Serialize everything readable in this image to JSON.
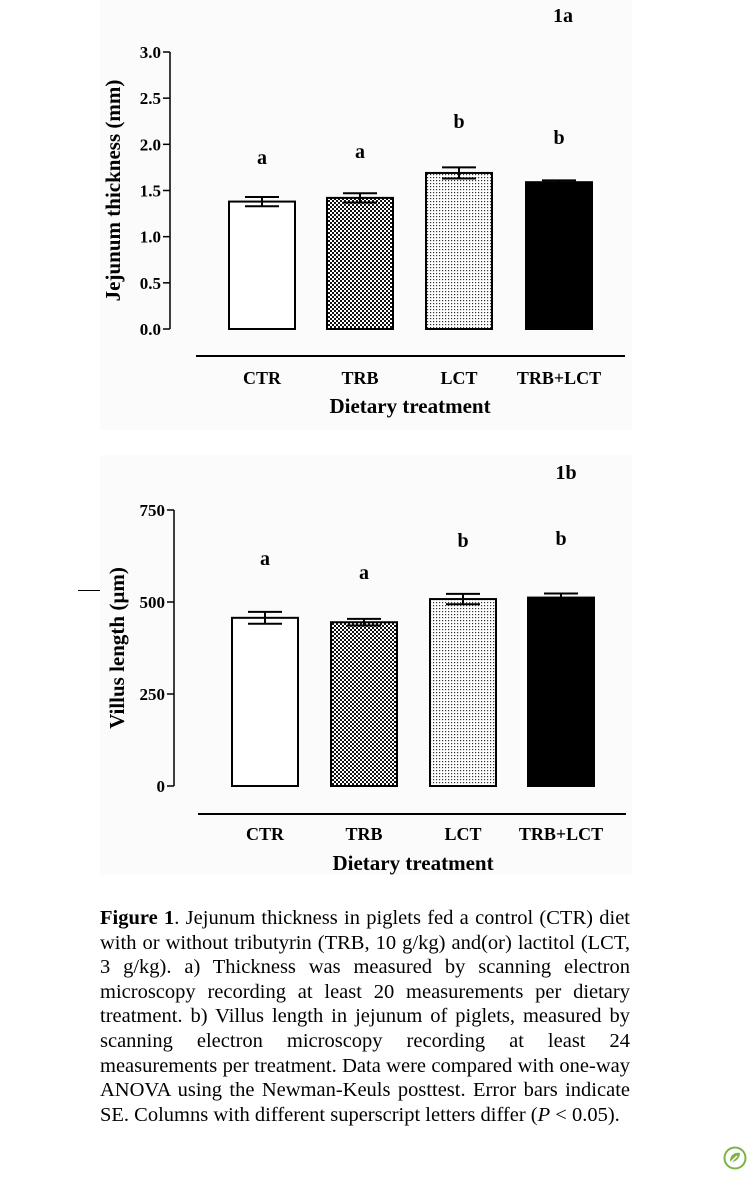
{
  "chart_data": [
    {
      "type": "bar",
      "panel_label": "1a",
      "categories": [
        "CTR",
        "TRB",
        "LCT",
        "TRB+LCT"
      ],
      "values": [
        1.38,
        1.42,
        1.69,
        1.59
      ],
      "errors": [
        0.05,
        0.05,
        0.06,
        0.02
      ],
      "significance": [
        "a",
        "a",
        "b",
        "b"
      ],
      "bar_fills": [
        "open",
        "checkered",
        "dotted",
        "solid"
      ],
      "ylabel": "Jejunum thickness (mm)",
      "xlabel": "Dietary treatment",
      "ylim": [
        0,
        3.0
      ],
      "yticks": [
        0.0,
        0.5,
        1.0,
        1.5,
        2.0,
        2.5,
        3.0
      ],
      "ytick_labels": [
        "0.0",
        "0.5",
        "1.0",
        "1.5",
        "2.0",
        "2.5",
        "3.0"
      ],
      "grid": false
    },
    {
      "type": "bar",
      "panel_label": "1b",
      "categories": [
        "CTR",
        "TRB",
        "LCT",
        "TRB+LCT"
      ],
      "values": [
        457,
        445,
        508,
        512
      ],
      "errors": [
        16,
        9,
        14,
        11
      ],
      "significance": [
        "a",
        "a",
        "b",
        "b"
      ],
      "bar_fills": [
        "open",
        "checkered",
        "dotted",
        "solid"
      ],
      "ylabel": "Villus length (µm)",
      "xlabel": "Dietary treatment",
      "ylim": [
        0,
        750
      ],
      "yticks": [
        0,
        250,
        500,
        750
      ],
      "ytick_labels": [
        "0",
        "250",
        "500",
        "750"
      ],
      "grid": false
    }
  ],
  "caption": {
    "figure_label": "Figure 1",
    "text_1": ". Jejunum thickness in piglets fed a control (CTR) diet with or without tributyrin (TRB, 10 g/kg) and(or) lactitol (LCT, 3 g/kg). a) Thickness was measured by scanning electron microscopy recording at least 20 measurements per dietary treatment. b) Villus length in jejunum of piglets, measured by scanning electron micros­copy recording at least 24 measurements per treatment. Data were compared with one-way ANOVA using the Newman-Keuls posttest. Error bars indicate SE. Columns with different superscript letters differ (",
    "p_symbol": "P",
    "text_2": " < 0.05)."
  },
  "logo_icon": "leaf-badge-icon"
}
